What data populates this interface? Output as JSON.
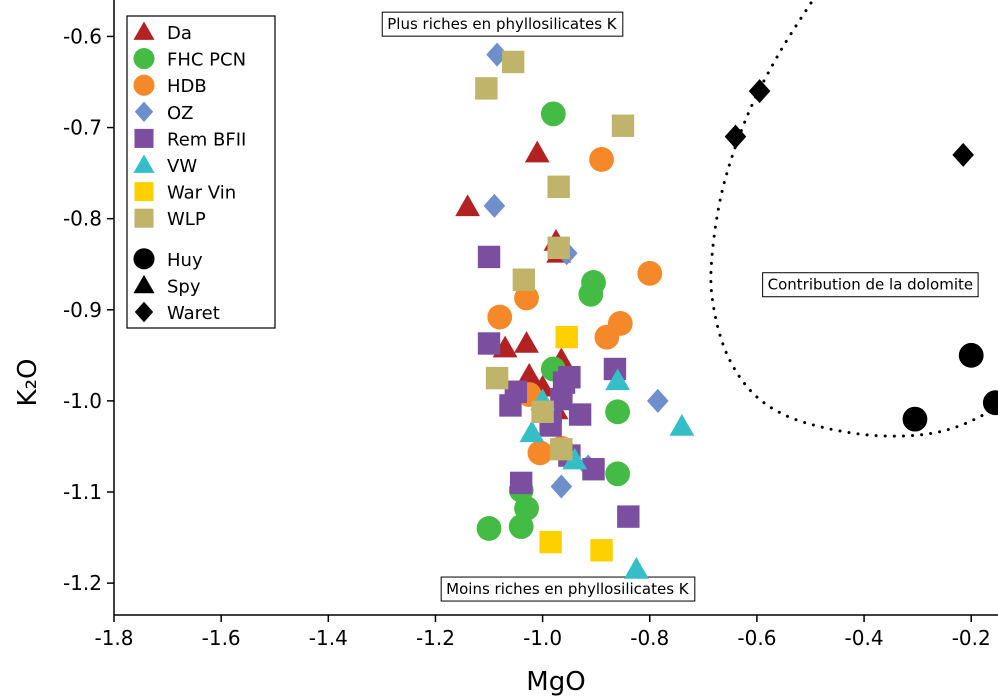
{
  "chart_data": {
    "type": "scatter",
    "title": "",
    "xlabel": "MgO",
    "ylabel": "K₂O",
    "xlim": [
      -1.8,
      -0.15
    ],
    "ylim": [
      -1.235,
      -0.56
    ],
    "xticks": [
      "-1.8",
      "-1.6",
      "-1.4",
      "-1.2",
      "-1.0",
      "-0.8",
      "-0.6",
      "-0.4",
      "-0.2"
    ],
    "xtick_values": [
      -1.8,
      -1.6,
      -1.4,
      -1.2,
      -1.0,
      -0.8,
      -0.6,
      -0.4,
      -0.2
    ],
    "yticks": [
      "-0.6",
      "-0.7",
      "-0.8",
      "-0.9",
      "-1.0",
      "-1.1",
      "-1.2"
    ],
    "ytick_values": [
      -0.6,
      -0.7,
      -0.8,
      -0.9,
      -1.0,
      -1.1,
      -1.2
    ],
    "grid": false,
    "legend_position": "top-left",
    "series": [
      {
        "name": "Da",
        "marker": "triangle",
        "color": "#b22222",
        "points": [
          [
            -1.14,
            -0.787
          ],
          [
            -1.01,
            -0.728
          ],
          [
            -0.975,
            -0.825
          ],
          [
            -0.97,
            -0.838
          ],
          [
            -1.07,
            -0.942
          ],
          [
            -1.03,
            -0.937
          ],
          [
            -0.965,
            -0.955
          ],
          [
            -1.025,
            -0.972
          ],
          [
            -1.0,
            -0.985
          ],
          [
            -0.975,
            -1.01
          ]
        ]
      },
      {
        "name": "FHC PCN",
        "marker": "circle",
        "color": "#44bb44",
        "points": [
          [
            -0.98,
            -0.685
          ],
          [
            -0.905,
            -0.87
          ],
          [
            -0.91,
            -0.883
          ],
          [
            -0.98,
            -0.965
          ],
          [
            -0.86,
            -1.012
          ],
          [
            -0.86,
            -1.08
          ],
          [
            -1.04,
            -1.098
          ],
          [
            -1.03,
            -1.118
          ],
          [
            -1.1,
            -1.14
          ],
          [
            -1.04,
            -1.138
          ]
        ]
      },
      {
        "name": "HDB",
        "marker": "circle",
        "color": "#f5892a",
        "points": [
          [
            -0.89,
            -0.735
          ],
          [
            -0.8,
            -0.86
          ],
          [
            -1.03,
            -0.887
          ],
          [
            -1.08,
            -0.908
          ],
          [
            -0.855,
            -0.915
          ],
          [
            -0.88,
            -0.93
          ],
          [
            -1.025,
            -0.993
          ],
          [
            -1.005,
            -1.057
          ],
          [
            -0.965,
            -1.052
          ]
        ]
      },
      {
        "name": "OZ",
        "marker": "diamond",
        "color": "#6f8fcc",
        "points": [
          [
            -1.085,
            -0.62
          ],
          [
            -1.09,
            -0.786
          ],
          [
            -0.955,
            -0.838
          ],
          [
            -0.785,
            -1.0
          ],
          [
            -0.915,
            -1.072
          ],
          [
            -0.965,
            -1.094
          ]
        ]
      },
      {
        "name": "Rem BFII",
        "marker": "square",
        "color": "#7b4ea0",
        "points": [
          [
            -1.1,
            -0.842
          ],
          [
            -1.1,
            -0.937
          ],
          [
            -0.865,
            -0.965
          ],
          [
            -0.95,
            -0.974
          ],
          [
            -0.96,
            -0.98
          ],
          [
            -1.05,
            -0.99
          ],
          [
            -1.06,
            -1.005
          ],
          [
            -0.965,
            -0.998
          ],
          [
            -0.985,
            -1.012
          ],
          [
            -0.93,
            -1.015
          ],
          [
            -0.985,
            -1.027
          ],
          [
            -0.95,
            -1.06
          ],
          [
            -0.905,
            -1.075
          ],
          [
            -1.04,
            -1.09
          ],
          [
            -0.84,
            -1.127
          ]
        ]
      },
      {
        "name": "VW",
        "marker": "triangle",
        "color": "#35bec8",
        "points": [
          [
            -0.86,
            -0.978
          ],
          [
            -1.0,
            -1.0
          ],
          [
            -1.02,
            -1.035
          ],
          [
            -0.74,
            -1.028
          ],
          [
            -0.94,
            -1.065
          ],
          [
            -0.825,
            -1.185
          ]
        ]
      },
      {
        "name": "War Vin",
        "marker": "square",
        "color": "#ffd000",
        "points": [
          [
            -0.955,
            -0.93
          ],
          [
            -0.985,
            -1.155
          ],
          [
            -0.89,
            -1.164
          ]
        ]
      },
      {
        "name": "WLP",
        "marker": "square",
        "color": "#bfb46a",
        "points": [
          [
            -1.055,
            -0.628
          ],
          [
            -1.105,
            -0.657
          ],
          [
            -0.85,
            -0.698
          ],
          [
            -0.97,
            -0.765
          ],
          [
            -0.97,
            -0.832
          ],
          [
            -1.035,
            -0.867
          ],
          [
            -1.085,
            -0.975
          ],
          [
            -1.0,
            -1.012
          ],
          [
            -0.965,
            -1.053
          ]
        ]
      },
      {
        "name": "Huy",
        "marker": "circle",
        "color": "#000000",
        "points": [
          [
            -0.2,
            -0.95
          ],
          [
            -0.155,
            -1.002
          ],
          [
            -0.305,
            -1.02
          ]
        ]
      },
      {
        "name": "Waret",
        "marker": "diamond",
        "color": "#000000",
        "points": [
          [
            -0.595,
            -0.66
          ],
          [
            -0.64,
            -0.71
          ],
          [
            -0.215,
            -0.73
          ]
        ]
      }
    ],
    "legend": [
      {
        "label": "Da",
        "marker": "triangle",
        "color": "#b22222"
      },
      {
        "label": "FHC PCN",
        "marker": "circle",
        "color": "#44bb44"
      },
      {
        "label": "HDB",
        "marker": "circle",
        "color": "#f5892a"
      },
      {
        "label": "OZ",
        "marker": "diamond",
        "color": "#6f8fcc"
      },
      {
        "label": "Rem BFII",
        "marker": "square",
        "color": "#7b4ea0"
      },
      {
        "label": "VW",
        "marker": "triangle",
        "color": "#35bec8"
      },
      {
        "label": "War Vin",
        "marker": "square",
        "color": "#ffd000"
      },
      {
        "label": "WLP",
        "marker": "square",
        "color": "#bfb46a"
      },
      {
        "label": "Huy",
        "marker": "circle",
        "color": "#000000"
      },
      {
        "label": "Spy",
        "marker": "triangle",
        "color": "#000000"
      },
      {
        "label": "Waret",
        "marker": "diamond",
        "color": "#000000"
      }
    ],
    "annotations": [
      {
        "text": "Plus riches en phyllosilicates K",
        "x": -1.29,
        "y": -0.592
      },
      {
        "text": "Contribution de la dolomite",
        "x": -0.58,
        "y": -0.878
      },
      {
        "text": "Moins riches en phyllosilicates K",
        "x": -1.18,
        "y": -1.212
      }
    ],
    "dotted_curve": [
      [
        -0.49,
        -0.555
      ],
      [
        -0.56,
        -0.62
      ],
      [
        -0.62,
        -0.69
      ],
      [
        -0.665,
        -0.77
      ],
      [
        -0.685,
        -0.85
      ],
      [
        -0.68,
        -0.9
      ],
      [
        -0.655,
        -0.95
      ],
      [
        -0.61,
        -0.99
      ],
      [
        -0.55,
        -1.015
      ],
      [
        -0.47,
        -1.03
      ],
      [
        -0.38,
        -1.038
      ],
      [
        -0.29,
        -1.037
      ],
      [
        -0.22,
        -1.027
      ],
      [
        -0.15,
        -1.007
      ]
    ]
  }
}
